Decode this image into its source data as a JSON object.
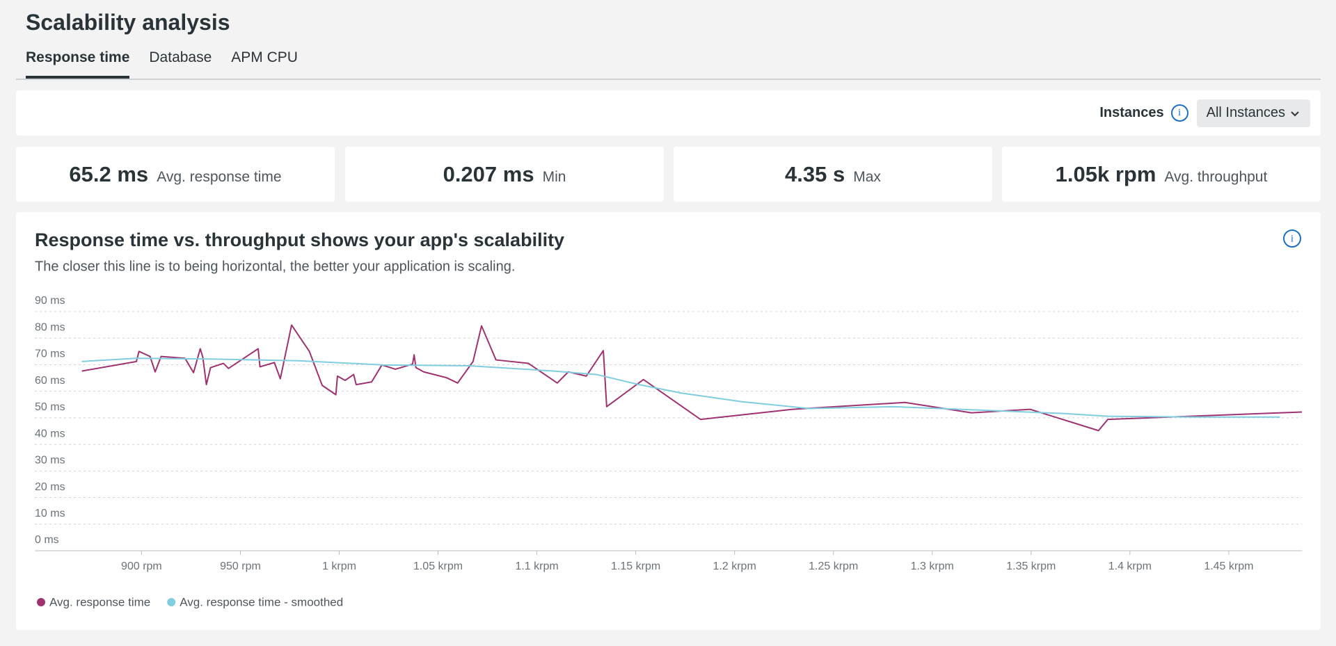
{
  "header": {
    "title": "Scalability analysis",
    "tabs": [
      "Response time",
      "Database",
      "APM CPU"
    ]
  },
  "filter": {
    "label": "Instances",
    "dropdown": "All Instances"
  },
  "stats": [
    {
      "value": "65.2 ms",
      "label": "Avg. response time"
    },
    {
      "value": "0.207 ms",
      "label": "Min"
    },
    {
      "value": "4.35 s",
      "label": "Max"
    },
    {
      "value": "1.05k rpm",
      "label": "Avg. throughput"
    }
  ],
  "chart_data": {
    "type": "line",
    "title": "Response time vs. throughput shows your app's scalability",
    "subtitle": "The closer this line is to being horizontal, the better your application is scaling.",
    "xlim": [
      846,
      1487
    ],
    "ylim": [
      0,
      90
    ],
    "grid": true,
    "xticks": [
      {
        "value": 900,
        "label": "900 rpm"
      },
      {
        "value": 950,
        "label": "950 rpm"
      },
      {
        "value": 1000,
        "label": "1 krpm"
      },
      {
        "value": 1050,
        "label": "1.05 krpm"
      },
      {
        "value": 1100,
        "label": "1.1 krpm"
      },
      {
        "value": 1150,
        "label": "1.15 krpm"
      },
      {
        "value": 1200,
        "label": "1.2 krpm"
      },
      {
        "value": 1250,
        "label": "1.25 krpm"
      },
      {
        "value": 1300,
        "label": "1.3 krpm"
      },
      {
        "value": 1350,
        "label": "1.35 krpm"
      },
      {
        "value": 1400,
        "label": "1.4 krpm"
      },
      {
        "value": 1450,
        "label": "1.45 krpm"
      }
    ],
    "yticks": [
      {
        "value": 0,
        "label": "0 ms"
      },
      {
        "value": 10,
        "label": "10 ms"
      },
      {
        "value": 20,
        "label": "20 ms"
      },
      {
        "value": 30,
        "label": "30 ms"
      },
      {
        "value": 40,
        "label": "40 ms"
      },
      {
        "value": 50,
        "label": "50 ms"
      },
      {
        "value": 60,
        "label": "60 ms"
      },
      {
        "value": 70,
        "label": "70 ms"
      },
      {
        "value": 80,
        "label": "80 ms"
      },
      {
        "value": 90,
        "label": "90 ms"
      }
    ],
    "series": [
      {
        "name": "Avg. response time",
        "color": "#9e3270",
        "x": [
          869.8,
          897.4,
          898.7,
          904.3,
          906.9,
          909.9,
          922,
          926.3,
          929.7,
          931,
          932.8,
          934.9,
          941.4,
          944,
          959,
          959.9,
          967.2,
          970.2,
          975.9,
          984.9,
          991.4,
          998.3,
          999.1,
          1003,
          1007.3,
          1008.6,
          1016.4,
          1021.6,
          1028.4,
          1037.1,
          1037.9,
          1038.8,
          1042.7,
          1054.3,
          1059.9,
          1067.7,
          1072,
          1079.3,
          1095.7,
          1110.3,
          1115.9,
          1125,
          1133.6,
          1135.3,
          1153.9,
          1182.8,
          1229.3,
          1286.2,
          1319.8,
          1349.6,
          1384.1,
          1388.8,
          1487
        ],
        "values": [
          67.6,
          71.2,
          75,
          73.1,
          67.3,
          73.1,
          72.4,
          67,
          76,
          72.8,
          62.5,
          68.9,
          70.5,
          68.6,
          76,
          69.2,
          70.8,
          64.7,
          84.9,
          75,
          62.2,
          58.7,
          65.7,
          64.1,
          66.3,
          62.5,
          63.5,
          69.9,
          68.3,
          70.2,
          73.7,
          68.9,
          67.3,
          65.1,
          63.1,
          71.2,
          84.6,
          71.8,
          70.5,
          63.1,
          67.3,
          65.7,
          75.3,
          54.2,
          64.4,
          49.4,
          53.2,
          55.8,
          51.9,
          53.2,
          45.2,
          49.4,
          52.2
        ]
      },
      {
        "name": "Avg. response time - smoothed",
        "color": "#80cde0",
        "x": [
          869.8,
          897.4,
          936.2,
          979.3,
          1022.4,
          1065.5,
          1108.6,
          1130.2,
          1151.7,
          1173.3,
          1203.5,
          1237.9,
          1281,
          1324.1,
          1367.2,
          1388.8,
          1431.9,
          1475.9
        ],
        "values": [
          71.2,
          72.4,
          72.1,
          71.5,
          69.9,
          69.6,
          67.6,
          66.3,
          62.5,
          59.3,
          56.1,
          53.5,
          54.2,
          52.9,
          51.6,
          50.6,
          50.3,
          50.3
        ]
      }
    ]
  }
}
